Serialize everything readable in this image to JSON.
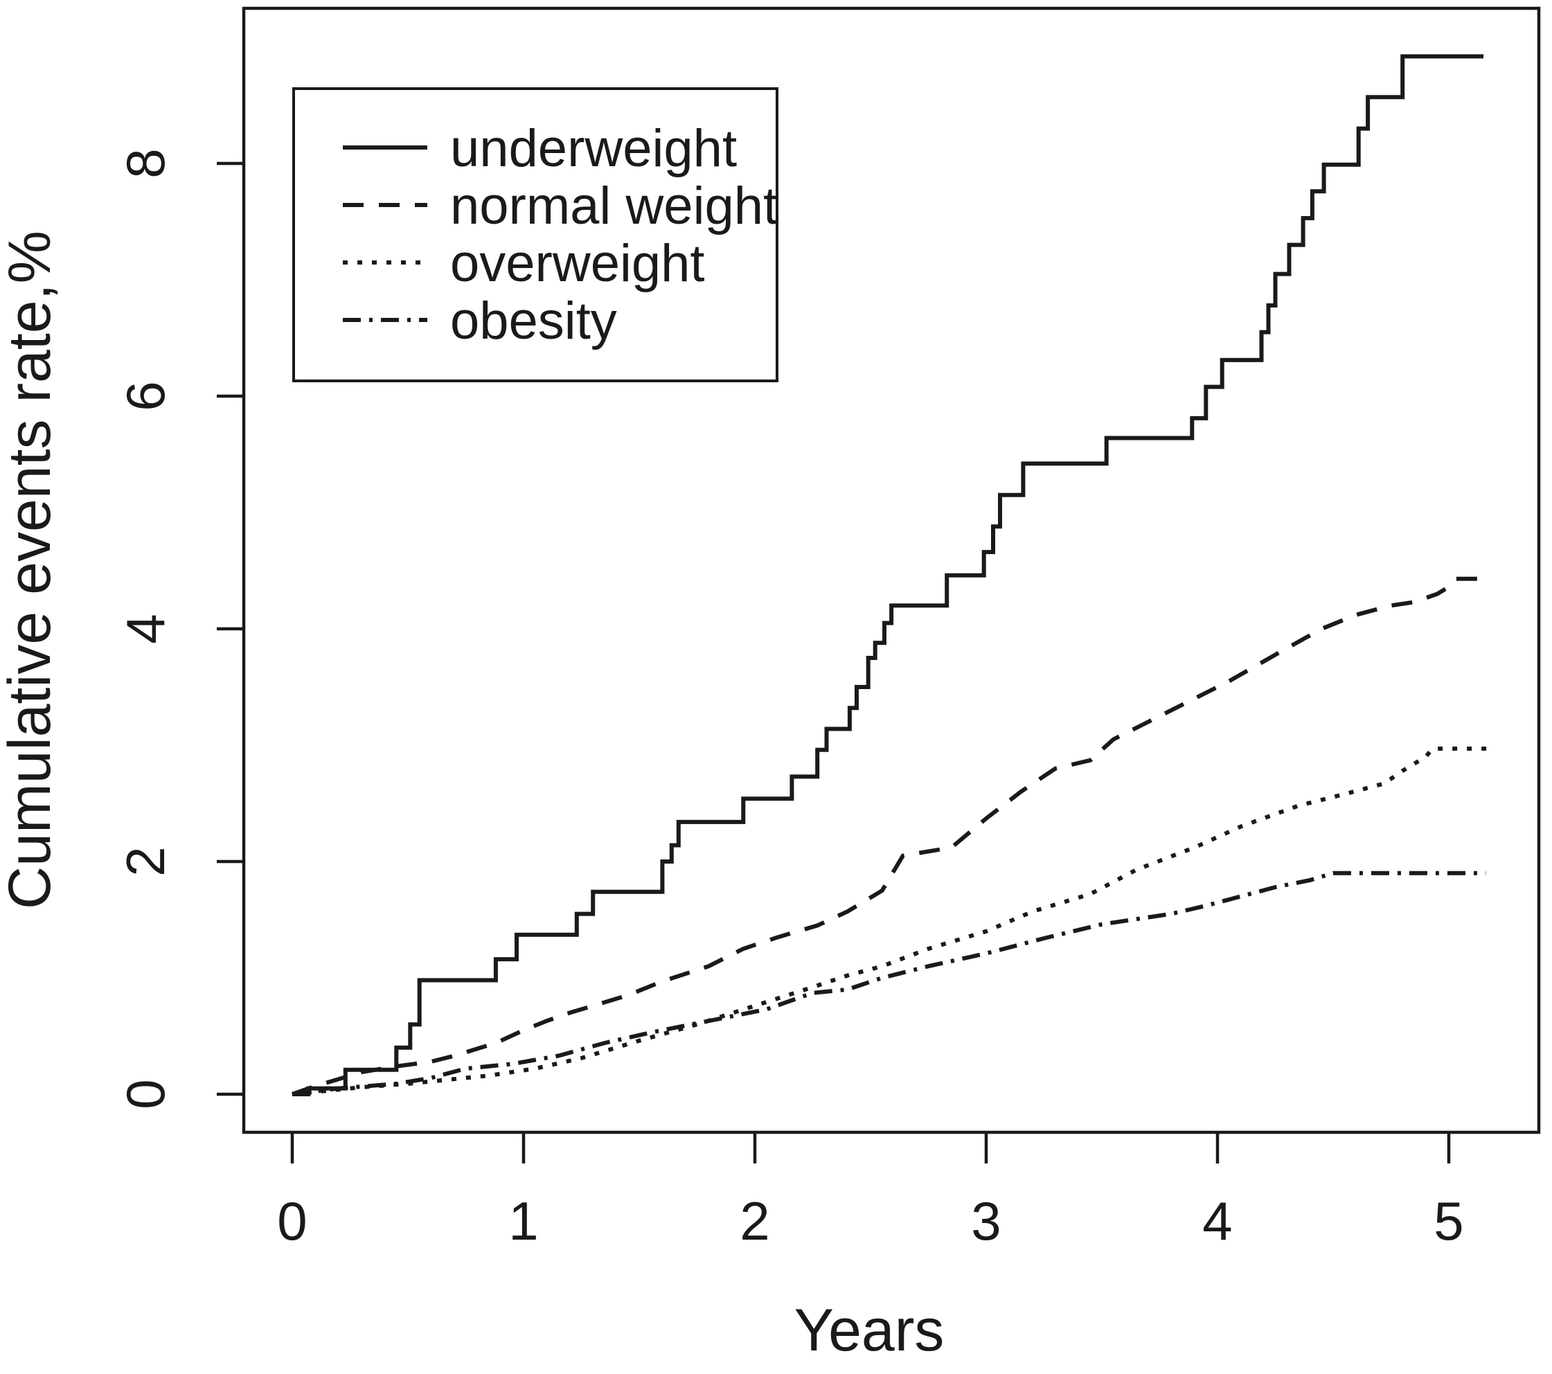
{
  "colors": {
    "line": "#1a1a1a",
    "background": "#ffffff"
  },
  "chart_data": {
    "type": "line",
    "subtype": "cumulative-incidence-km-curves",
    "title": "",
    "xlabel": "Years",
    "ylabel": "Cumulative events rate,%",
    "xlim": [
      -0.2,
      5.4
    ],
    "ylim": [
      -0.3,
      9.3
    ],
    "x_ticks": [
      0,
      1,
      2,
      3,
      4,
      5
    ],
    "y_ticks": [
      0,
      2,
      4,
      6,
      8
    ],
    "grid": "off",
    "legend_position": "top-left-inside",
    "series": [
      {
        "name": "underweight",
        "line_style": "solid",
        "interpolation": "step",
        "points": [
          [
            0,
            0
          ],
          [
            0.07,
            0.05
          ],
          [
            0.23,
            0.21
          ],
          [
            0.45,
            0.4
          ],
          [
            0.51,
            0.6
          ],
          [
            0.55,
            0.98
          ],
          [
            0.88,
            1.16
          ],
          [
            0.97,
            1.37
          ],
          [
            1.23,
            1.55
          ],
          [
            1.3,
            1.74
          ],
          [
            1.6,
            2.0
          ],
          [
            1.64,
            2.14
          ],
          [
            1.67,
            2.34
          ],
          [
            1.95,
            2.54
          ],
          [
            2.16,
            2.73
          ],
          [
            2.27,
            2.96
          ],
          [
            2.31,
            3.14
          ],
          [
            2.41,
            3.32
          ],
          [
            2.44,
            3.5
          ],
          [
            2.49,
            3.75
          ],
          [
            2.52,
            3.88
          ],
          [
            2.56,
            4.05
          ],
          [
            2.59,
            4.2
          ],
          [
            2.83,
            4.46
          ],
          [
            2.99,
            4.66
          ],
          [
            3.03,
            4.88
          ],
          [
            3.06,
            5.15
          ],
          [
            3.16,
            5.42
          ],
          [
            3.52,
            5.64
          ],
          [
            3.89,
            5.81
          ],
          [
            3.95,
            6.08
          ],
          [
            4.02,
            6.31
          ],
          [
            4.19,
            6.55
          ],
          [
            4.22,
            6.78
          ],
          [
            4.25,
            7.05
          ],
          [
            4.31,
            7.3
          ],
          [
            4.37,
            7.53
          ],
          [
            4.41,
            7.76
          ],
          [
            4.46,
            7.99
          ],
          [
            4.61,
            8.3
          ],
          [
            4.65,
            8.57
          ],
          [
            4.8,
            8.92
          ],
          [
            5.15,
            8.92
          ]
        ]
      },
      {
        "name": "normal weight",
        "line_style": "dashed",
        "interpolation": "linear",
        "points": [
          [
            0,
            0
          ],
          [
            0.1,
            0.07
          ],
          [
            0.2,
            0.13
          ],
          [
            0.3,
            0.19
          ],
          [
            0.45,
            0.24
          ],
          [
            0.6,
            0.28
          ],
          [
            0.7,
            0.33
          ],
          [
            0.88,
            0.44
          ],
          [
            1.0,
            0.55
          ],
          [
            1.1,
            0.63
          ],
          [
            1.2,
            0.7
          ],
          [
            1.3,
            0.76
          ],
          [
            1.45,
            0.85
          ],
          [
            1.6,
            0.97
          ],
          [
            1.8,
            1.1
          ],
          [
            1.95,
            1.25
          ],
          [
            2.1,
            1.35
          ],
          [
            2.27,
            1.45
          ],
          [
            2.4,
            1.57
          ],
          [
            2.55,
            1.75
          ],
          [
            2.64,
            2.05
          ],
          [
            2.85,
            2.12
          ],
          [
            3.0,
            2.37
          ],
          [
            3.15,
            2.6
          ],
          [
            3.3,
            2.8
          ],
          [
            3.45,
            2.87
          ],
          [
            3.55,
            3.05
          ],
          [
            3.7,
            3.2
          ],
          [
            3.9,
            3.4
          ],
          [
            4.05,
            3.55
          ],
          [
            4.27,
            3.8
          ],
          [
            4.45,
            4.0
          ],
          [
            4.6,
            4.12
          ],
          [
            4.75,
            4.2
          ],
          [
            4.85,
            4.23
          ],
          [
            4.95,
            4.3
          ],
          [
            5.0,
            4.36
          ],
          [
            5.03,
            4.43
          ],
          [
            5.15,
            4.43
          ]
        ]
      },
      {
        "name": "overweight",
        "line_style": "dotted",
        "interpolation": "linear",
        "points": [
          [
            0,
            0
          ],
          [
            0.3,
            0.06
          ],
          [
            0.5,
            0.09
          ],
          [
            0.65,
            0.12
          ],
          [
            0.85,
            0.16
          ],
          [
            1.05,
            0.22
          ],
          [
            1.25,
            0.31
          ],
          [
            1.5,
            0.46
          ],
          [
            1.75,
            0.6
          ],
          [
            2.0,
            0.76
          ],
          [
            2.25,
            0.92
          ],
          [
            2.4,
            1.02
          ],
          [
            2.55,
            1.1
          ],
          [
            2.75,
            1.25
          ],
          [
            3.0,
            1.4
          ],
          [
            3.2,
            1.57
          ],
          [
            3.45,
            1.72
          ],
          [
            3.65,
            1.93
          ],
          [
            3.9,
            2.12
          ],
          [
            4.1,
            2.3
          ],
          [
            4.35,
            2.48
          ],
          [
            4.55,
            2.58
          ],
          [
            4.72,
            2.67
          ],
          [
            4.8,
            2.78
          ],
          [
            4.9,
            2.9
          ],
          [
            4.93,
            2.97
          ],
          [
            5.18,
            2.97
          ]
        ]
      },
      {
        "name": "obesity",
        "line_style": "dashdot",
        "interpolation": "linear",
        "points": [
          [
            0,
            0
          ],
          [
            0.2,
            0.05
          ],
          [
            0.45,
            0.09
          ],
          [
            0.6,
            0.14
          ],
          [
            0.75,
            0.22
          ],
          [
            0.95,
            0.26
          ],
          [
            1.15,
            0.33
          ],
          [
            1.35,
            0.44
          ],
          [
            1.55,
            0.53
          ],
          [
            1.8,
            0.63
          ],
          [
            2.05,
            0.73
          ],
          [
            2.25,
            0.87
          ],
          [
            2.4,
            0.9
          ],
          [
            2.55,
            1.0
          ],
          [
            2.75,
            1.1
          ],
          [
            3.0,
            1.21
          ],
          [
            3.25,
            1.34
          ],
          [
            3.5,
            1.46
          ],
          [
            3.8,
            1.55
          ],
          [
            3.95,
            1.62
          ],
          [
            4.1,
            1.7
          ],
          [
            4.25,
            1.78
          ],
          [
            4.4,
            1.84
          ],
          [
            4.5,
            1.9
          ],
          [
            5.16,
            1.9
          ]
        ]
      }
    ],
    "legend_entries": [
      "underweight",
      "normal weight",
      "overweight",
      "obesity"
    ]
  }
}
